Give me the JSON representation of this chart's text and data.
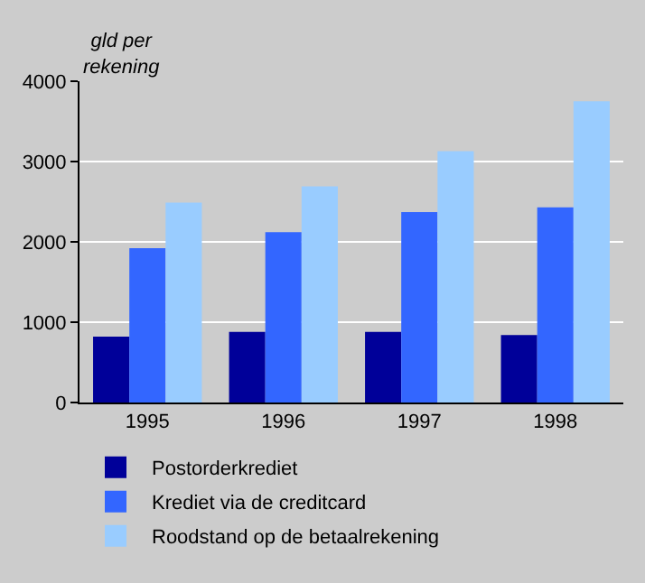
{
  "chart_data": {
    "type": "bar",
    "ylabel": "gld per\nrekening",
    "categories": [
      "1995",
      "1996",
      "1997",
      "1998"
    ],
    "series": [
      {
        "name": "Postorderkrediet",
        "color": "#000099",
        "values": [
          820,
          880,
          880,
          840
        ]
      },
      {
        "name": "Krediet via de creditcard",
        "color": "#3366ff",
        "values": [
          1920,
          2120,
          2370,
          2430
        ]
      },
      {
        "name": "Roodstand op de betaalrekening",
        "color": "#99ccff",
        "values": [
          2490,
          2690,
          3130,
          3750
        ]
      }
    ],
    "ylim": [
      0,
      4000
    ],
    "yticks": [
      0,
      1000,
      2000,
      3000,
      4000
    ],
    "grid": "y",
    "legend": "bottom"
  }
}
